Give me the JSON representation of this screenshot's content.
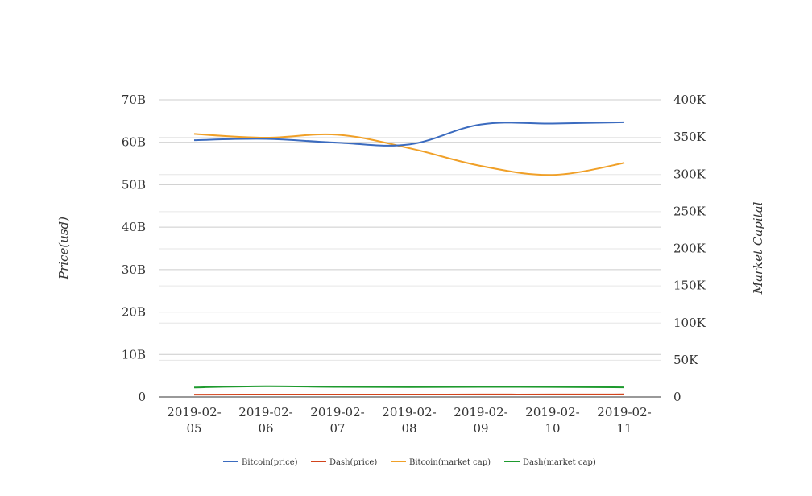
{
  "chart_data": {
    "type": "line",
    "title": "",
    "categories": [
      "2019-02-05",
      "2019-02-06",
      "2019-02-07",
      "2019-02-08",
      "2019-02-09",
      "2019-02-10",
      "2019-02-11"
    ],
    "x_tick_lines": [
      [
        "2019-02-",
        "05"
      ],
      [
        "2019-02-",
        "06"
      ],
      [
        "2019-02-",
        "07"
      ],
      [
        "2019-02-",
        "08"
      ],
      [
        "2019-02-",
        "09"
      ],
      [
        "2019-02-",
        "10"
      ],
      [
        "2019-02-",
        "11"
      ]
    ],
    "y_left": {
      "label": "Price(usd)",
      "range": [
        0,
        70000000000
      ],
      "tick_values": [
        0,
        10000000000,
        20000000000,
        30000000000,
        40000000000,
        50000000000,
        60000000000,
        70000000000
      ],
      "tick_labels": [
        "0",
        "10B",
        "20B",
        "30B",
        "40B",
        "50B",
        "60B",
        "70B"
      ]
    },
    "y_right": {
      "label": "Market Capital",
      "range": [
        0,
        400000
      ],
      "tick_values": [
        0,
        50000,
        100000,
        150000,
        200000,
        250000,
        300000,
        350000,
        400000
      ],
      "tick_labels": [
        "0",
        "50K",
        "100K",
        "150K",
        "200K",
        "250K",
        "300K",
        "350K",
        "400K"
      ]
    },
    "grid": true,
    "legend_position": "bottom",
    "series": [
      {
        "name": "Bitcoin(price)",
        "color": "#3b6bbf",
        "axis": "left",
        "values": [
          60500000000,
          60800000000,
          59900000000,
          59500000000,
          64200000000,
          64400000000,
          64700000000
        ]
      },
      {
        "name": "Dash(price)",
        "color": "#d2441c",
        "axis": "left",
        "values": [
          550000000,
          560000000,
          560000000,
          570000000,
          580000000,
          580000000,
          600000000
        ]
      },
      {
        "name": "Bitcoin(market cap)",
        "color": "#f0a028",
        "axis": "right",
        "values": [
          354000,
          349000,
          353000,
          335000,
          311000,
          299000,
          315000
        ]
      },
      {
        "name": "Dash(market cap)",
        "color": "#1e9a2e",
        "axis": "right",
        "values": [
          12800,
          14300,
          13500,
          13300,
          13500,
          13400,
          12900
        ]
      }
    ]
  }
}
